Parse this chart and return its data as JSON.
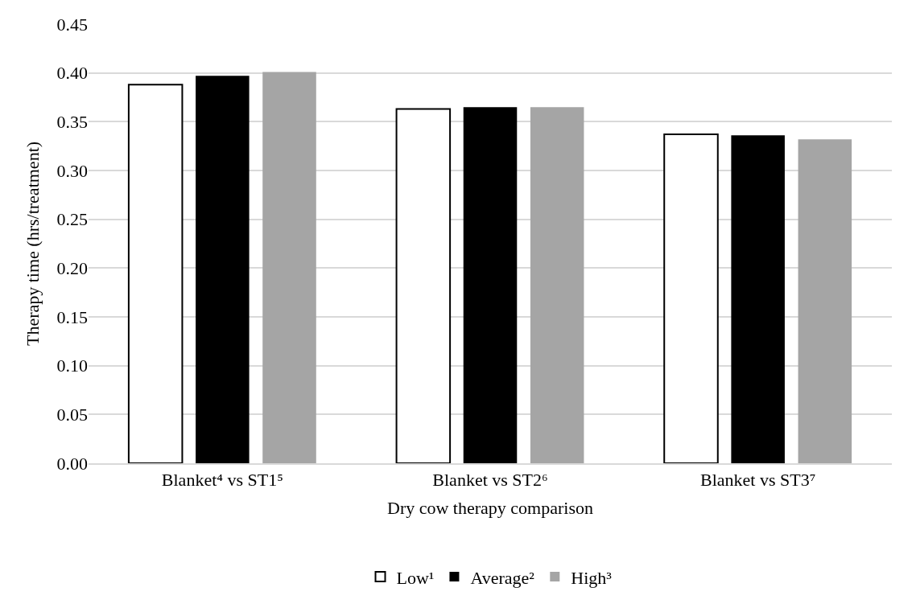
{
  "chart_data": {
    "type": "bar",
    "xlabel": "Dry cow therapy comparison",
    "ylabel": "Therapy time (hrs/treatment)",
    "categories": [
      "Blanket⁴ vs ST1⁵",
      "Blanket vs ST2⁶",
      "Blanket vs ST3⁷"
    ],
    "series": [
      {
        "name": "Low¹",
        "color": "#ffffff",
        "values": [
          0.388,
          0.363,
          0.337
        ]
      },
      {
        "name": "Average²",
        "color": "#000000",
        "values": [
          0.397,
          0.365,
          0.336
        ]
      },
      {
        "name": "High³",
        "color": "#a5a5a5",
        "values": [
          0.401,
          0.365,
          0.332
        ]
      }
    ],
    "ylim": [
      0,
      0.45
    ],
    "yticks": [
      {
        "value": 0,
        "label": "0.00"
      },
      {
        "value": 0.05,
        "label": "0.05"
      },
      {
        "value": 0.1,
        "label": "0.10"
      },
      {
        "value": 0.15,
        "label": "0.15"
      },
      {
        "value": 0.2,
        "label": "0.20"
      },
      {
        "value": 0.25,
        "label": "0.25"
      },
      {
        "value": 0.3,
        "label": "0.30"
      },
      {
        "value": 0.35,
        "label": "0.35"
      },
      {
        "value": 0.4,
        "label": "0.40"
      },
      {
        "value": 0.45,
        "label": "0.45"
      }
    ],
    "grid": "y",
    "legend": "bottom"
  }
}
